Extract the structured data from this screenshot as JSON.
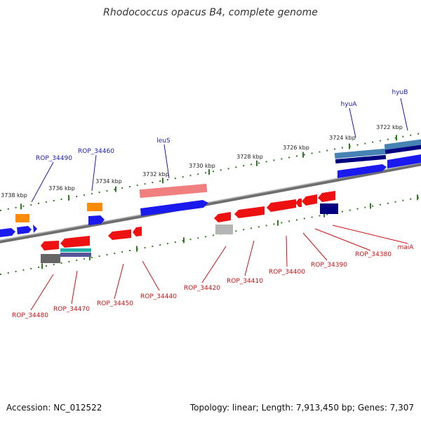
{
  "title": "Rhodococcus opacus B4, complete genome",
  "accession": "Accession: NC_012522",
  "summary": "Topology: linear; Length: 7,913,450 bp; Genes: 7,307",
  "colors": {
    "plus_gene": "#1a1aee",
    "minus_gene": "#ee1111",
    "plus_label": "#1a1ab4",
    "minus_label": "#cc1111",
    "tick": "#2e7d1e",
    "backbone": "#8a8a8a",
    "orange": "#ff8c00",
    "pink": "#f08080",
    "navy": "#000080",
    "steel": "#4682b4",
    "teal": "#20b2aa",
    "gray_dark": "#666666",
    "gray_light": "#b5b5b5"
  },
  "scale_labels": [
    "3738 kbp",
    "3736 kbp",
    "3734 kbp",
    "3732 kbp",
    "3730 kbp",
    "3728 kbp",
    "3726 kbp",
    "3724 kbp",
    "3722 kbp"
  ],
  "top_labels": [
    "ROP_34490",
    "ROP_34460",
    "leuS",
    "hyuA",
    "hyuB"
  ],
  "bottom_labels": [
    "ROP_34480",
    "ROP_34470",
    "ROP_34450",
    "ROP_34440",
    "ROP_34420",
    "ROP_34410",
    "ROP_34400",
    "ROP_34390",
    "ROP_34380",
    "maiA"
  ]
}
